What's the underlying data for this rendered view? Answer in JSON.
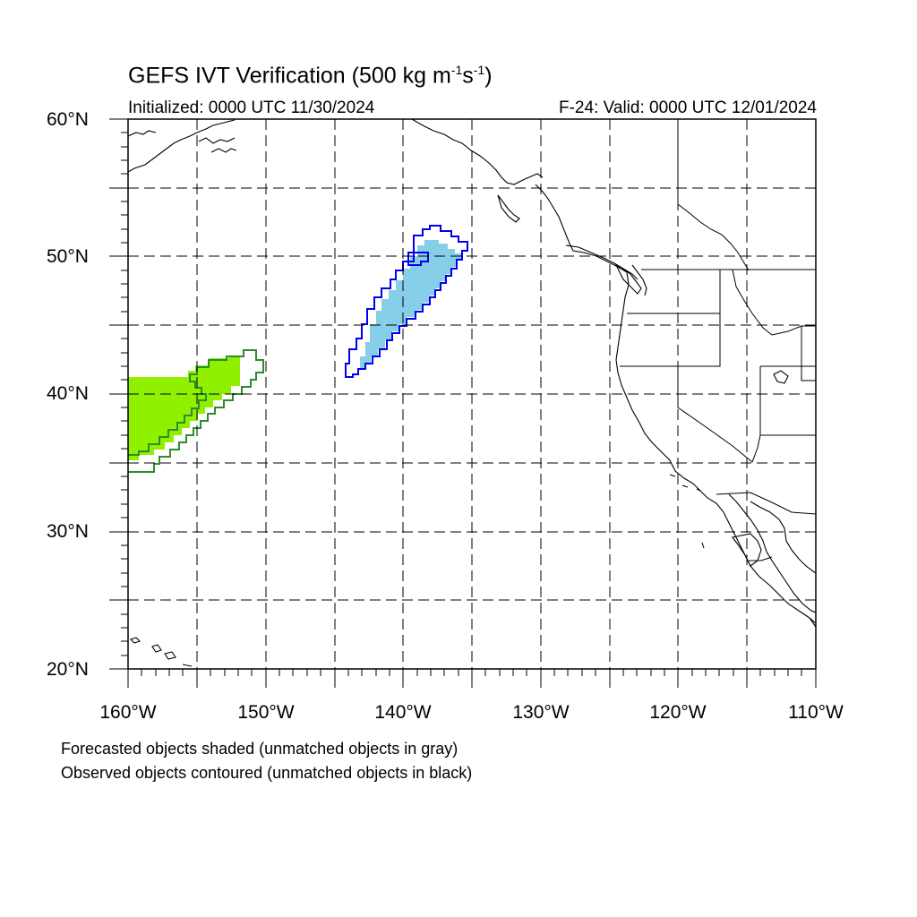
{
  "title": {
    "main": "GEFS IVT Verification (500 kg m",
    "sup1": "-1",
    "mid": "s",
    "sup2": "-1",
    "end": ")"
  },
  "initialized": "Initialized: 0000 UTC 11/30/2024",
  "valid": "F-24: Valid: 0000 UTC 12/01/2024",
  "map": {
    "projection": "cylindrical-equidistant",
    "lon_range": [
      -160,
      -110
    ],
    "lat_range": [
      20,
      60
    ],
    "grid": "dashed every 5 degrees",
    "lat_labels": [
      "20°N",
      "30°N",
      "40°N",
      "50°N",
      "60°N"
    ],
    "lon_labels": [
      "160°W",
      "150°W",
      "140°W",
      "130°W",
      "120°W",
      "110°W"
    ],
    "objects": [
      {
        "id": "object-1",
        "forecast_fill": "#8ff000",
        "observed_contour": "#2e8b2e"
      },
      {
        "id": "object-2",
        "forecast_fill": "#87cee8",
        "observed_contour": "#0000ee"
      }
    ]
  },
  "notes": [
    "Forecasted objects shaded (unmatched objects in gray)",
    "Observed objects contoured (unmatched objects in black)"
  ]
}
